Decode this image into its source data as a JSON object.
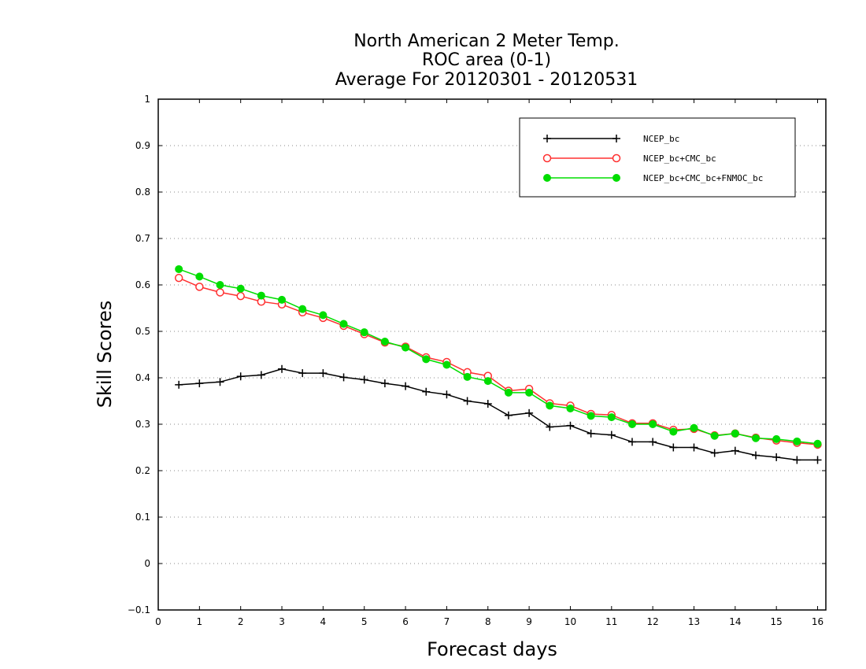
{
  "chart_data": {
    "type": "line",
    "title": [
      "North American 2 Meter Temp.",
      "ROC area (0-1)",
      "Average For 20120301 - 20120531"
    ],
    "xlabel": "Forecast days",
    "ylabel": "Skill Scores",
    "xlim": [
      0,
      16.2
    ],
    "ylim": [
      -0.1,
      1
    ],
    "xticks": [
      0,
      1,
      2,
      3,
      4,
      5,
      6,
      7,
      8,
      9,
      10,
      11,
      12,
      13,
      14,
      15,
      16
    ],
    "xtick_labels": [
      "0",
      "1",
      "2",
      "3",
      "4",
      "5",
      "6",
      "7",
      "8",
      "9",
      "10",
      "11",
      "12",
      "13",
      "14",
      "15",
      "16"
    ],
    "yticks": [
      -0.1,
      0,
      0.1,
      0.2,
      0.3,
      0.4,
      0.5,
      0.6,
      0.7,
      0.8,
      0.9,
      1
    ],
    "ytick_labels": [
      "−0.1",
      "0",
      "0.1",
      "0.2",
      "0.3",
      "0.4",
      "0.5",
      "0.6",
      "0.7",
      "0.8",
      "0.9",
      "1"
    ],
    "grid": "horizontal dotted",
    "legend_position": "top-right",
    "x": [
      0.5,
      1,
      1.5,
      2,
      2.5,
      3,
      3.5,
      4,
      4.5,
      5,
      5.5,
      6,
      6.5,
      7,
      7.5,
      8,
      8.5,
      9,
      9.5,
      10,
      10.5,
      11,
      11.5,
      12,
      12.5,
      13,
      13.5,
      14,
      14.5,
      15,
      15.5,
      16
    ],
    "series": [
      {
        "name": "NCEP_bc",
        "color": "#000000",
        "marker": "plus",
        "values": [
          0.385,
          0.388,
          0.391,
          0.403,
          0.406,
          0.419,
          0.41,
          0.41,
          0.401,
          0.396,
          0.388,
          0.382,
          0.37,
          0.364,
          0.35,
          0.344,
          0.319,
          0.324,
          0.294,
          0.297,
          0.28,
          0.277,
          0.262,
          0.262,
          0.25,
          0.25,
          0.238,
          0.243,
          0.233,
          0.229,
          0.223,
          0.223
        ]
      },
      {
        "name": "NCEP_bc+CMC_bc",
        "color": "#ff3030",
        "marker": "open-circle",
        "values": [
          0.615,
          0.596,
          0.584,
          0.576,
          0.564,
          0.558,
          0.541,
          0.529,
          0.512,
          0.494,
          0.476,
          0.467,
          0.444,
          0.434,
          0.412,
          0.404,
          0.372,
          0.376,
          0.345,
          0.34,
          0.322,
          0.32,
          0.302,
          0.302,
          0.288,
          0.29,
          0.276,
          0.28,
          0.271,
          0.265,
          0.26,
          0.256
        ]
      },
      {
        "name": "NCEP_bc+CMC_bc+FNMOC_bc",
        "color": "#00dd00",
        "marker": "filled-circle",
        "values": [
          0.634,
          0.618,
          0.6,
          0.592,
          0.577,
          0.568,
          0.548,
          0.535,
          0.516,
          0.498,
          0.478,
          0.465,
          0.44,
          0.428,
          0.402,
          0.393,
          0.368,
          0.368,
          0.34,
          0.334,
          0.318,
          0.315,
          0.3,
          0.3,
          0.284,
          0.292,
          0.275,
          0.28,
          0.27,
          0.268,
          0.263,
          0.258
        ]
      }
    ]
  }
}
